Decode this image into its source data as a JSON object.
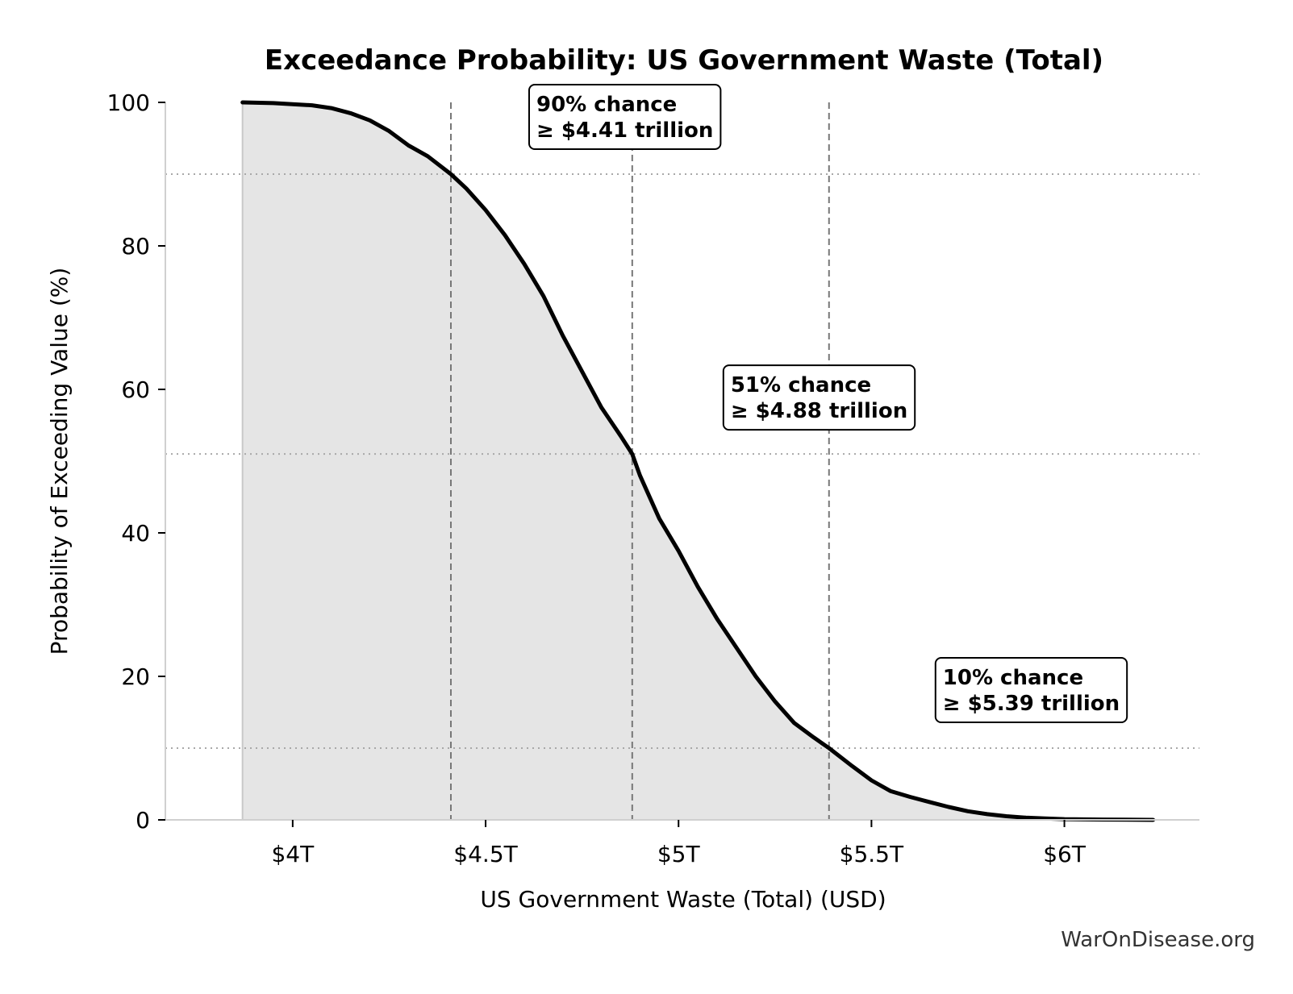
{
  "chart_data": {
    "type": "area",
    "title": "Exceedance Probability: US Government Waste (Total)",
    "xlabel": "US Government Waste (Total) (USD)",
    "ylabel": "Probability of Exceeding Value (%)",
    "xlim": [
      3.67,
      6.35
    ],
    "ylim": [
      0,
      100
    ],
    "x_ticks": [
      {
        "value": 4.0,
        "label": "$4T"
      },
      {
        "value": 4.5,
        "label": "$4.5T"
      },
      {
        "value": 5.0,
        "label": "$5T"
      },
      {
        "value": 5.5,
        "label": "$5.5T"
      },
      {
        "value": 6.0,
        "label": "$6T"
      }
    ],
    "y_ticks": [
      {
        "value": 0,
        "label": "0"
      },
      {
        "value": 20,
        "label": "20"
      },
      {
        "value": 40,
        "label": "40"
      },
      {
        "value": 60,
        "label": "60"
      },
      {
        "value": 80,
        "label": "80"
      },
      {
        "value": 100,
        "label": "100"
      }
    ],
    "grid": "horizontal dotted at annotated probabilities",
    "series": [
      {
        "color": "#000000",
        "fill": "#e5e5e5",
        "x": [
          3.87,
          3.95,
          4.05,
          4.1,
          4.15,
          4.2,
          4.25,
          4.3,
          4.35,
          4.41,
          4.45,
          4.5,
          4.55,
          4.6,
          4.65,
          4.7,
          4.75,
          4.8,
          4.85,
          4.88,
          4.9,
          4.95,
          5.0,
          5.05,
          5.1,
          5.15,
          5.2,
          5.25,
          5.3,
          5.35,
          5.39,
          5.45,
          5.5,
          5.55,
          5.6,
          5.65,
          5.7,
          5.75,
          5.8,
          5.85,
          5.9,
          5.95,
          6.0,
          6.1,
          6.23
        ],
        "y": [
          100,
          99.9,
          99.6,
          99.2,
          98.5,
          97.5,
          96.0,
          94.0,
          92.5,
          90.0,
          88.0,
          85.0,
          81.5,
          77.5,
          73.0,
          67.5,
          62.5,
          57.5,
          53.5,
          51.0,
          48.0,
          42.0,
          37.5,
          32.5,
          28.0,
          24.0,
          20.0,
          16.5,
          13.5,
          11.5,
          10.0,
          7.5,
          5.5,
          4.0,
          3.2,
          2.5,
          1.8,
          1.2,
          0.8,
          0.5,
          0.3,
          0.2,
          0.1,
          0.05,
          0.0
        ]
      }
    ],
    "reference_lines": [
      {
        "x": 4.41,
        "y": 90
      },
      {
        "x": 4.88,
        "y": 51
      },
      {
        "x": 5.39,
        "y": 10
      }
    ],
    "annotations": [
      {
        "line1": "90% chance",
        "line2": "≥ $4.41 trillion",
        "x": 4.41,
        "y": 90
      },
      {
        "line1": "51% chance",
        "line2": "≥ $4.88 trillion",
        "x": 4.88,
        "y": 51
      },
      {
        "line1": "10% chance",
        "line2": "≥ $5.39 trillion",
        "x": 5.39,
        "y": 10
      }
    ],
    "watermark": "WarOnDisease.org"
  }
}
